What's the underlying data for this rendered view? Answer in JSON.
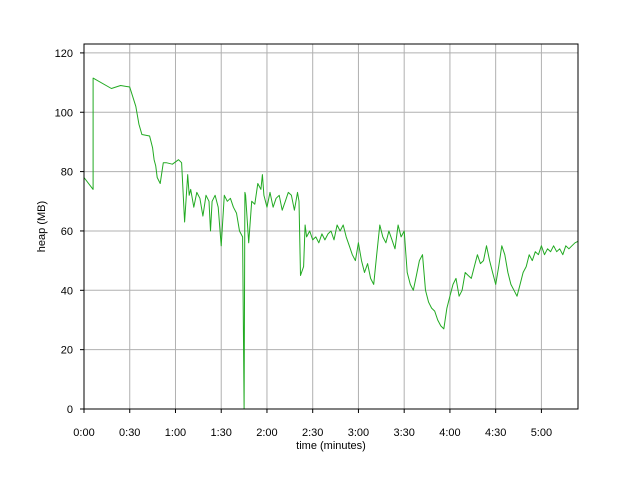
{
  "chart_data": {
    "type": "line",
    "title": "",
    "xlabel": "time (minutes)",
    "ylabel": "heap (MB)",
    "xlim": [
      0,
      324
    ],
    "ylim": [
      0,
      123
    ],
    "grid": true,
    "x_ticks": [
      {
        "value": 0,
        "label": "0:00"
      },
      {
        "value": 30,
        "label": "0:30"
      },
      {
        "value": 60,
        "label": "1:00"
      },
      {
        "value": 90,
        "label": "1:30"
      },
      {
        "value": 120,
        "label": "2:00"
      },
      {
        "value": 150,
        "label": "2:30"
      },
      {
        "value": 180,
        "label": "3:00"
      },
      {
        "value": 210,
        "label": "3:30"
      },
      {
        "value": 240,
        "label": "4:00"
      },
      {
        "value": 270,
        "label": "4:30"
      },
      {
        "value": 300,
        "label": "5:00"
      }
    ],
    "y_ticks": [
      {
        "value": 0,
        "label": "0"
      },
      {
        "value": 20,
        "label": "20"
      },
      {
        "value": 40,
        "label": "40"
      },
      {
        "value": 60,
        "label": "60"
      },
      {
        "value": 80,
        "label": "80"
      },
      {
        "value": 100,
        "label": "100"
      },
      {
        "value": 120,
        "label": "120"
      }
    ],
    "series": [
      {
        "color": "#22aa22",
        "x": [
          0,
          6,
          6,
          18,
          24,
          30,
          34,
          36,
          38,
          43,
          45,
          46,
          47,
          48,
          50,
          52,
          54,
          58,
          62,
          64,
          66,
          68,
          69,
          70,
          72,
          74,
          76,
          78,
          80,
          82,
          83,
          84,
          86,
          88,
          90,
          92,
          94,
          96,
          98,
          100,
          102,
          104,
          105,
          105.5,
          106,
          108,
          110,
          112,
          114,
          116,
          117,
          118,
          120,
          122,
          124,
          126,
          128,
          130,
          132,
          134,
          136,
          138,
          140,
          141,
          142,
          144,
          145,
          146,
          148,
          150,
          152,
          154,
          156,
          158,
          160,
          162,
          164,
          166,
          168,
          170,
          172,
          174,
          176,
          178,
          180,
          182,
          184,
          186,
          188,
          190,
          192,
          194,
          196,
          198,
          200,
          202,
          204,
          206,
          208,
          210,
          212,
          214,
          216,
          218,
          220,
          222,
          224,
          226,
          228,
          230,
          232,
          234,
          236,
          238,
          240,
          242,
          244,
          246,
          248,
          250,
          252,
          254,
          256,
          258,
          260,
          262,
          264,
          266,
          268,
          270,
          272,
          274,
          276,
          278,
          280,
          282,
          284,
          286,
          288,
          290,
          292,
          294,
          296,
          298,
          300,
          302,
          304,
          306,
          308,
          310,
          312,
          314,
          316,
          318,
          320,
          322,
          324
        ],
        "y": [
          78,
          74,
          111.5,
          108,
          109,
          108.5,
          102,
          96,
          92.5,
          92,
          88,
          84,
          82,
          78,
          76,
          83,
          83,
          82.5,
          84,
          83,
          63,
          79,
          72,
          74,
          68,
          73,
          71,
          65,
          72,
          70,
          60,
          70,
          72,
          68,
          55,
          72,
          70,
          71,
          68,
          66,
          60,
          58,
          0,
          73,
          72,
          56,
          70,
          69,
          76,
          74,
          79,
          72,
          68,
          73,
          68,
          71,
          72,
          67,
          70,
          73,
          72,
          67,
          73,
          70,
          45,
          48,
          62,
          58,
          60,
          57,
          58,
          56,
          59,
          57,
          59,
          60,
          57,
          62,
          60,
          62,
          58,
          55,
          52,
          50,
          56,
          50,
          46,
          49,
          44,
          42,
          52,
          62,
          58,
          56,
          60,
          57,
          54,
          62,
          58,
          60,
          46,
          42,
          40,
          45,
          50,
          52,
          40,
          36,
          34,
          33,
          30,
          28,
          27,
          34,
          38,
          42,
          44,
          38,
          40,
          46,
          45,
          44,
          48,
          52,
          49,
          50,
          55,
          50,
          46,
          42,
          48,
          55,
          52,
          46,
          42,
          40,
          38,
          42,
          46,
          48,
          52,
          50,
          53,
          52,
          55,
          52,
          54,
          53,
          55,
          53,
          54,
          52,
          55,
          54,
          55,
          56,
          56.5
        ]
      }
    ]
  }
}
